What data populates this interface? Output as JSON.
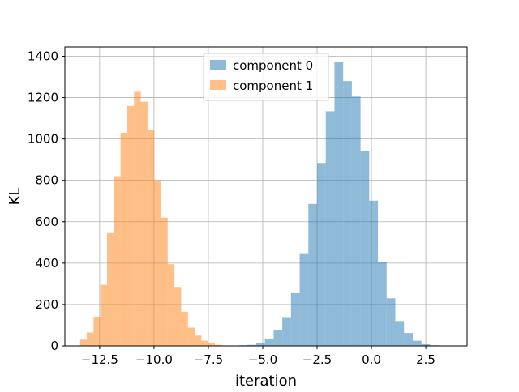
{
  "chart_data": {
    "type": "histogram",
    "title": "",
    "xlabel": "iteration",
    "ylabel": "KL",
    "xlim": [
      -14.1,
      4.4
    ],
    "ylim": [
      0,
      1445
    ],
    "grid": true,
    "legend_position": "top-center",
    "xticks": [
      -12.5,
      -10.0,
      -7.5,
      -5.0,
      -2.5,
      0.0,
      2.5
    ],
    "xtick_labels": [
      "−12.5",
      "−10.0",
      "−7.5",
      "−5.0",
      "−2.5",
      "0.0",
      "2.5"
    ],
    "yticks": [
      0,
      200,
      400,
      600,
      800,
      1000,
      1200,
      1400
    ],
    "ytick_labels": [
      "0",
      "200",
      "400",
      "600",
      "800",
      "1000",
      "1200",
      "1400"
    ],
    "series": [
      {
        "name": "component 0",
        "color": "#1f77b4",
        "alpha": 0.5,
        "bin_start": -6.5,
        "bin_width": 0.4,
        "values": [
          2,
          3,
          5,
          14,
          32,
          75,
          135,
          255,
          448,
          686,
          884,
          1134,
          1372,
          1280,
          1205,
          940,
          702,
          405,
          230,
          120,
          62,
          25,
          8,
          3,
          1
        ]
      },
      {
        "name": "component 1",
        "color": "#ff7f0e",
        "alpha": 0.5,
        "bin_start": -13.4,
        "bin_width": 0.31,
        "values": [
          30,
          65,
          140,
          295,
          545,
          820,
          1030,
          1160,
          1232,
          1180,
          1045,
          800,
          620,
          395,
          285,
          165,
          88,
          50,
          25,
          15,
          5,
          2
        ]
      }
    ]
  }
}
